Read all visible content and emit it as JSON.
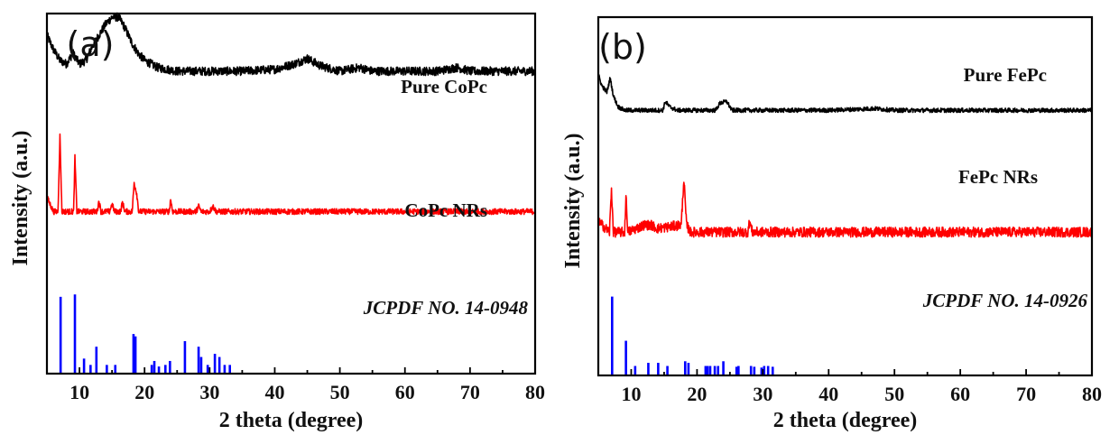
{
  "chart_data": [
    {
      "type": "line",
      "panel_label": "(a)",
      "xlabel": "2 theta (degree)",
      "ylabel": "Intensity (a.u.)",
      "xlim": [
        5,
        80
      ],
      "xticks": [
        10,
        20,
        30,
        40,
        50,
        60,
        70,
        80
      ],
      "ytick_labels": false,
      "series": [
        {
          "name": "Pure CoPc",
          "color": "#000000",
          "kind": "line",
          "offset": 0.84,
          "points": [
            [
              5,
              0.1
            ],
            [
              6,
              0.06
            ],
            [
              7,
              0.03
            ],
            [
              8,
              0.02
            ],
            [
              9,
              0.05
            ],
            [
              10,
              0.02
            ],
            [
              11,
              0.03
            ],
            [
              12,
              0.07
            ],
            [
              13,
              0.1
            ],
            [
              14,
              0.13
            ],
            [
              15,
              0.15
            ],
            [
              16,
              0.15
            ],
            [
              17,
              0.12
            ],
            [
              18,
              0.08
            ],
            [
              19,
              0.05
            ],
            [
              20,
              0.03
            ],
            [
              22,
              0.01
            ],
            [
              25,
              0.0
            ],
            [
              30,
              0.0
            ],
            [
              35,
              0.0
            ],
            [
              40,
              0.005
            ],
            [
              43,
              0.02
            ],
            [
              45,
              0.035
            ],
            [
              47,
              0.015
            ],
            [
              50,
              0.0
            ],
            [
              53,
              0.01
            ],
            [
              55,
              0.0
            ],
            [
              60,
              0.0
            ],
            [
              65,
              0.0
            ],
            [
              68,
              0.01
            ],
            [
              70,
              0.0
            ],
            [
              75,
              0.0
            ],
            [
              80,
              0.0
            ]
          ],
          "noise": 0.012
        },
        {
          "name": "CoPc NRs",
          "color": "#ff0000",
          "kind": "line",
          "offset": 0.45,
          "points": [
            [
              5,
              0.04
            ],
            [
              6,
              0.0
            ],
            [
              6.7,
              0.0
            ],
            [
              7.0,
              0.21
            ],
            [
              7.3,
              0.0
            ],
            [
              8.5,
              0.0
            ],
            [
              9.1,
              0.0
            ],
            [
              9.3,
              0.15
            ],
            [
              9.6,
              0.0
            ],
            [
              12.7,
              0.0
            ],
            [
              13,
              0.03
            ],
            [
              13.3,
              0.0
            ],
            [
              14.6,
              0.0
            ],
            [
              15,
              0.02
            ],
            [
              15.4,
              0.0
            ],
            [
              16.3,
              0.0
            ],
            [
              16.6,
              0.025
            ],
            [
              17,
              0.0
            ],
            [
              18.1,
              0.0
            ],
            [
              18.4,
              0.08
            ],
            [
              18.8,
              0.05
            ],
            [
              19.1,
              0.0
            ],
            [
              23.8,
              0.0
            ],
            [
              24,
              0.035
            ],
            [
              24.3,
              0.0
            ],
            [
              27.9,
              0.0
            ],
            [
              28.3,
              0.015
            ],
            [
              28.7,
              0.0
            ],
            [
              30,
              0.0
            ],
            [
              30.5,
              0.015
            ],
            [
              31,
              0.0
            ],
            [
              80,
              0.0
            ]
          ],
          "noise": 0.008
        },
        {
          "name": "JCPDF NO. 14-0948",
          "color": "#0000ff",
          "kind": "stick",
          "x": [
            7.1,
            9.3,
            10.7,
            11.7,
            12.6,
            14.2,
            15.5,
            18.3,
            18.6,
            21.1,
            21.5,
            22.2,
            23.2,
            23.9,
            26.2,
            28.3,
            28.7,
            29.7,
            30.8,
            31.5,
            32.3,
            33.1
          ],
          "y": [
            97,
            100,
            19,
            11,
            34,
            11,
            11,
            50,
            47,
            11,
            16,
            9,
            11,
            16,
            41,
            34,
            21,
            11,
            25,
            21,
            11,
            11
          ]
        }
      ]
    },
    {
      "type": "line",
      "panel_label": "(b)",
      "xlabel": "2 theta (degree)",
      "ylabel": "Intensity (a.u.)",
      "xlim": [
        5,
        80
      ],
      "xticks": [
        10,
        20,
        30,
        40,
        50,
        60,
        70,
        80
      ],
      "ytick_labels": false,
      "series": [
        {
          "name": "Pure FePc",
          "color": "#000000",
          "kind": "line",
          "offset": 0.74,
          "points": [
            [
              5,
              0.1
            ],
            [
              5.5,
              0.07
            ],
            [
              6.3,
              0.05
            ],
            [
              6.8,
              0.09
            ],
            [
              7.3,
              0.04
            ],
            [
              8,
              0.01
            ],
            [
              9,
              0.0
            ],
            [
              14.8,
              0.0
            ],
            [
              15.2,
              0.025
            ],
            [
              15.8,
              0.01
            ],
            [
              17,
              0.0
            ],
            [
              22.8,
              0.0
            ],
            [
              23.5,
              0.02
            ],
            [
              24.5,
              0.025
            ],
            [
              25.3,
              0.0
            ],
            [
              40,
              0.0
            ],
            [
              47,
              0.005
            ],
            [
              50,
              0.0
            ],
            [
              80,
              0.0
            ]
          ],
          "noise": 0.006
        },
        {
          "name": "FePc NRs",
          "color": "#ff0000",
          "kind": "line",
          "offset": 0.4,
          "points": [
            [
              5,
              0.03
            ],
            [
              6.7,
              0.0
            ],
            [
              7.0,
              0.12
            ],
            [
              7.3,
              0.0
            ],
            [
              9.0,
              0.0
            ],
            [
              9.2,
              0.1
            ],
            [
              9.5,
              0.0
            ],
            [
              12,
              0.02
            ],
            [
              13,
              0.02
            ],
            [
              14,
              0.01
            ],
            [
              17.6,
              0.02
            ],
            [
              18.0,
              0.15
            ],
            [
              18.4,
              0.02
            ],
            [
              19,
              0.0
            ],
            [
              27.7,
              0.0
            ],
            [
              28,
              0.03
            ],
            [
              28.4,
              0.0
            ],
            [
              80,
              0.0
            ]
          ],
          "noise": 0.014
        },
        {
          "name": "JCPDF NO. 14-0926",
          "color": "#0000ff",
          "kind": "stick",
          "x": [
            7.1,
            9.2,
            10.6,
            12.6,
            14.1,
            15.5,
            18.2,
            18.7,
            21.3,
            21.6,
            22.0,
            22.7,
            23.2,
            24.0,
            26.0,
            26.3,
            28.2,
            28.7,
            29.8,
            30.2,
            30.8,
            31.5
          ],
          "y": [
            100,
            44,
            12,
            16,
            16,
            12,
            18,
            16,
            12,
            12,
            12,
            12,
            12,
            18,
            11,
            12,
            12,
            11,
            10,
            12,
            12,
            11
          ]
        }
      ]
    }
  ]
}
